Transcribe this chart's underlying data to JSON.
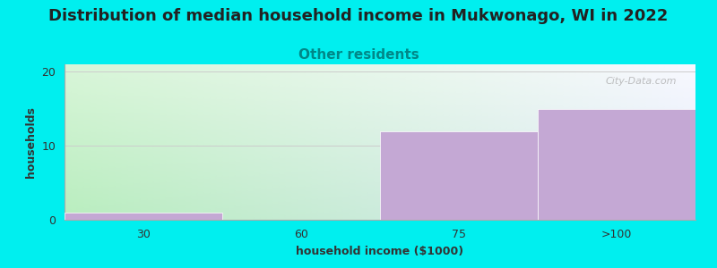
{
  "title": "Distribution of median household income in Mukwonago, WI in 2022",
  "subtitle": "Other residents",
  "xlabel": "household income ($1000)",
  "ylabel": "households",
  "categories": [
    "30",
    "60",
    "75",
    ">100"
  ],
  "values": [
    1,
    0,
    12,
    15
  ],
  "bar_color": "#c4a8d4",
  "bar_edgecolor": "#ffffff",
  "ylim": [
    0,
    21
  ],
  "yticks": [
    0,
    10,
    20
  ],
  "background_outer": "#00efef",
  "plot_bg_topleft": "#d8f5d8",
  "plot_bg_topright": "#e8e8f8",
  "plot_bg_bottomleft": "#b8edbe",
  "plot_bg_bottomright": "#dde8f8",
  "title_fontsize": 13,
  "title_color": "#222222",
  "subtitle_color": "#008888",
  "subtitle_fontsize": 11,
  "axis_label_fontsize": 9,
  "tick_fontsize": 9,
  "watermark_text": "City-Data.com",
  "watermark_color": "#aaaaaa",
  "grid_color": "#cccccc",
  "bar_linewidth": 0.5
}
